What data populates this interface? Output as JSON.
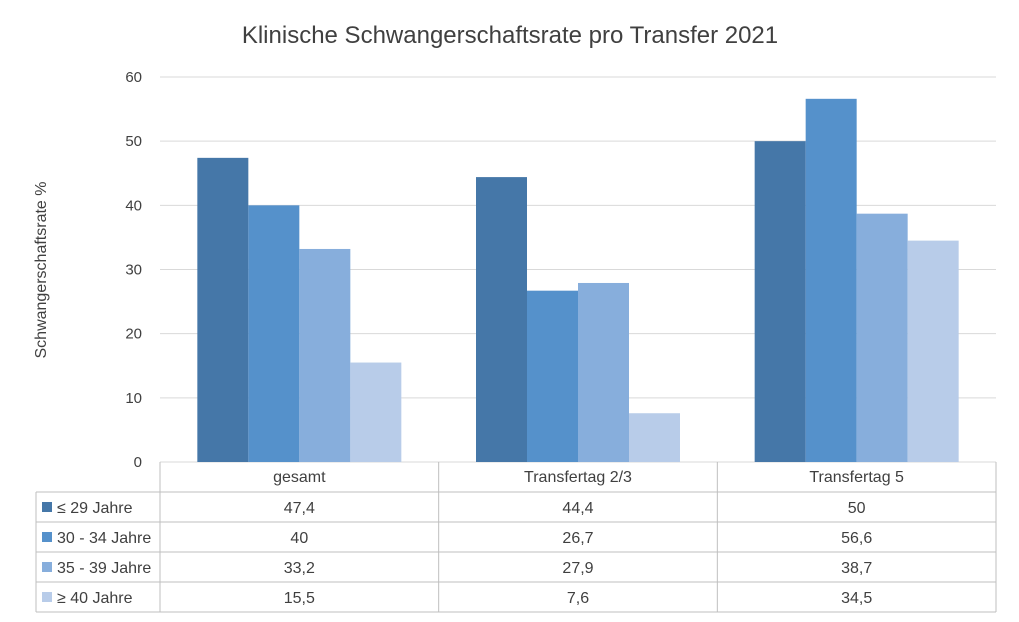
{
  "chart_data": {
    "type": "bar",
    "title": "Klinische Schwangerschaftsrate pro Transfer 2021",
    "ylabel": "Schwangerschaftsrate %",
    "xlabel": "",
    "ylim": [
      0,
      60
    ],
    "yticks": [
      0,
      10,
      20,
      30,
      40,
      50,
      60
    ],
    "grid": true,
    "legend": "data-table",
    "categories": [
      "gesamt",
      "Transfertag 2/3",
      "Transfertag 5"
    ],
    "series": [
      {
        "name": "≤ 29 Jahre",
        "values": [
          47.4,
          44.4,
          50
        ],
        "labels": [
          "47,4",
          "44,4",
          "50"
        ],
        "color": "#4577a8"
      },
      {
        "name": "30 - 34 Jahre",
        "values": [
          40,
          26.7,
          56.6
        ],
        "labels": [
          "40",
          "26,7",
          "56,6"
        ],
        "color": "#5591cb"
      },
      {
        "name": "35 - 39 Jahre",
        "values": [
          33.2,
          27.9,
          38.7
        ],
        "labels": [
          "33,2",
          "27,9",
          "38,7"
        ],
        "color": "#87aedc"
      },
      {
        "name": "≥ 40 Jahre",
        "values": [
          15.5,
          7.6,
          34.5
        ],
        "labels": [
          "15,5",
          "7,6",
          "34,5"
        ],
        "color": "#b8cce9"
      }
    ]
  }
}
